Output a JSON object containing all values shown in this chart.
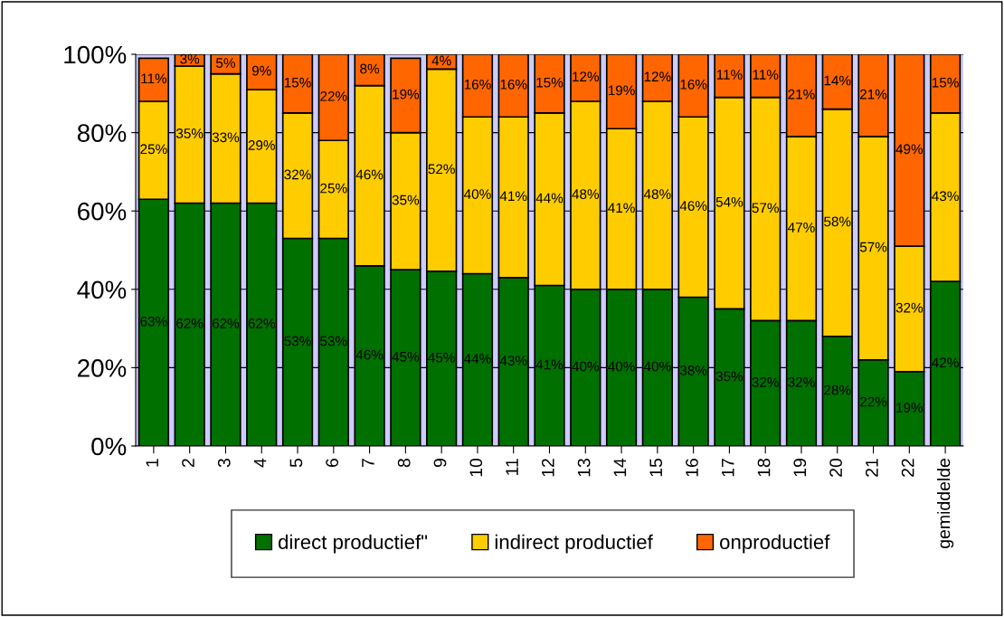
{
  "chart_data": {
    "type": "bar",
    "stacked": true,
    "categories": [
      "1",
      "2",
      "3",
      "4",
      "5",
      "6",
      "7",
      "8",
      "9",
      "10",
      "11",
      "12",
      "13",
      "14",
      "15",
      "16",
      "17",
      "18",
      "19",
      "20",
      "21",
      "22",
      "gemiddelde"
    ],
    "series": [
      {
        "name": "direct productief\"",
        "color": "#007000",
        "values": [
          63,
          62,
          62,
          62,
          53,
          53,
          46,
          45,
          44.6,
          44,
          43,
          41,
          40,
          40,
          40,
          38,
          35,
          32,
          32,
          28,
          22,
          19,
          42
        ],
        "value_labels": [
          "63%",
          "62%",
          "62%",
          "62%",
          "53%",
          "53%",
          "46%",
          "45%",
          "45%",
          "44%",
          "43%",
          "41%",
          "40%",
          "40%",
          "40%",
          "38%",
          "35%",
          "32%",
          "32%",
          "28%",
          "22%",
          "19%",
          "42%"
        ]
      },
      {
        "name": "indirect productief",
        "color": "#ffcc00",
        "values": [
          25,
          35,
          33,
          29,
          32,
          25,
          46,
          35,
          51.6,
          40,
          41,
          44,
          48,
          41,
          48,
          46,
          54,
          57,
          47,
          58,
          57,
          32,
          43
        ],
        "value_labels": [
          "25%",
          "35%",
          "33%",
          "29%",
          "32%",
          "25%",
          "46%",
          "35%",
          "52%",
          "40%",
          "41%",
          "44%",
          "48%",
          "41%",
          "48%",
          "46%",
          "54%",
          "57%",
          "47%",
          "58%",
          "57%",
          "32%",
          "43%"
        ]
      },
      {
        "name": "onproductief",
        "color": "#ff6600",
        "values": [
          11,
          3,
          5,
          9,
          15,
          22,
          8,
          19,
          3.8,
          16,
          16,
          15,
          12,
          19,
          12,
          16,
          11,
          11,
          21,
          14,
          21,
          49,
          15
        ],
        "value_labels": [
          "11%",
          "3%",
          "5%",
          "9%",
          "15%",
          "22%",
          "8%",
          "19%",
          "4%",
          "16%",
          "16%",
          "15%",
          "12%",
          "19%",
          "12%",
          "16%",
          "11%",
          "11%",
          "21%",
          "14%",
          "21%",
          "49%",
          "15%"
        ]
      }
    ],
    "ylim": [
      0,
      100
    ],
    "yticks": [
      {
        "value": 0,
        "label": "0%"
      },
      {
        "value": 20,
        "label": "20%"
      },
      {
        "value": 40,
        "label": "40%"
      },
      {
        "value": 60,
        "label": "60%"
      },
      {
        "value": 80,
        "label": "80%"
      },
      {
        "value": 100,
        "label": "100%"
      }
    ],
    "bands": [
      {
        "axis": "y",
        "from": 0,
        "to": 100,
        "color": "#ccccff"
      }
    ],
    "grid": "y",
    "legend": "bottom"
  }
}
